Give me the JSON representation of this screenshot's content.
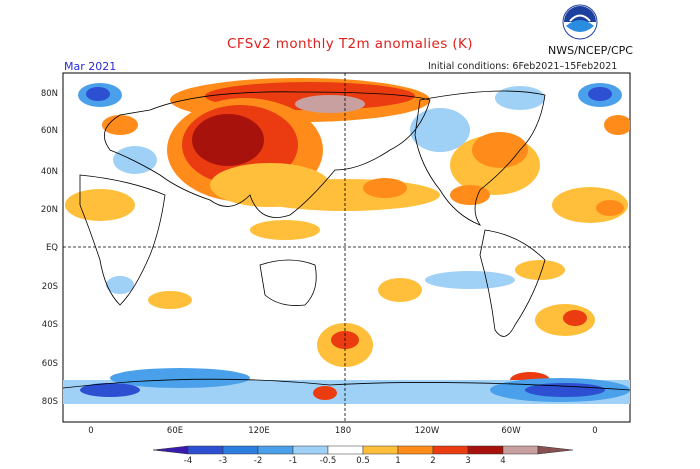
{
  "header": {
    "title": "CFSv2 monthly T2m anomalies (K)",
    "agency": "NWS/NCEP/CPC",
    "month": "Mar 2021",
    "initial_conditions": "Initial conditions: 6Feb2021–15Feb2021"
  },
  "axes": {
    "lat_labels": [
      "80N",
      "60N",
      "40N",
      "20N",
      "EQ",
      "20S",
      "40S",
      "60S",
      "80S"
    ],
    "lon_labels": [
      "0",
      "60E",
      "120E",
      "180",
      "120W",
      "60W",
      "0"
    ]
  },
  "colorbar": {
    "tick_labels": [
      "-4",
      "-3",
      "-2",
      "-1",
      "-0.5",
      "0.5",
      "1",
      "2",
      "3",
      "4"
    ],
    "colors": [
      "#3a1bb0",
      "#2d4fd1",
      "#2e7ee0",
      "#4aa0ea",
      "#9fd0f6",
      "#ffffff",
      "#ffbf3a",
      "#ff8c1a",
      "#ea3c10",
      "#a8120c",
      "#c8a0a0",
      "#885050"
    ]
  },
  "icons": {
    "logo": "noaa-logo"
  }
}
